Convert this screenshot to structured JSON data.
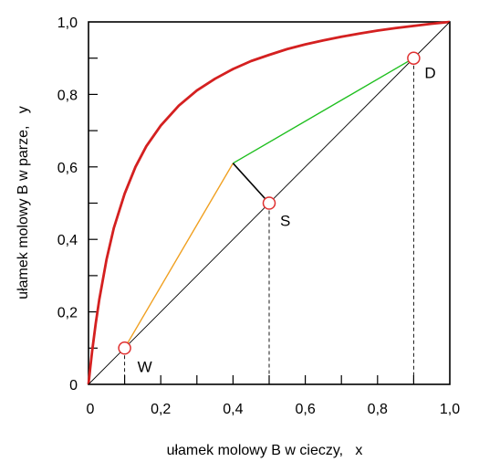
{
  "chart_data": {
    "type": "line",
    "xlabel": "ułamek molowy B w cieczy,   x",
    "ylabel": "ułamek molowy B w parze,   y",
    "xlim": [
      0,
      1
    ],
    "ylim": [
      0,
      1
    ],
    "x_ticks": [
      {
        "value": 0.0,
        "label": "0"
      },
      {
        "value": 0.2,
        "label": "0,2"
      },
      {
        "value": 0.4,
        "label": "0,4"
      },
      {
        "value": 0.6,
        "label": "0,6"
      },
      {
        "value": 0.8,
        "label": "0,8"
      },
      {
        "value": 1.0,
        "label": "1,0"
      }
    ],
    "y_ticks": [
      {
        "value": 0.0,
        "label": "0"
      },
      {
        "value": 0.2,
        "label": "0,2"
      },
      {
        "value": 0.4,
        "label": "0,4"
      },
      {
        "value": 0.6,
        "label": "0,6"
      },
      {
        "value": 0.8,
        "label": "0,8"
      },
      {
        "value": 1.0,
        "label": "1,0"
      }
    ],
    "minor_tick_step": 0.1,
    "grid": false,
    "series": [
      {
        "key": "equilibrium-curve",
        "color": "#d42020",
        "x": [
          0,
          0.005,
          0.01,
          0.02,
          0.03,
          0.05,
          0.07,
          0.1,
          0.13,
          0.16,
          0.2,
          0.25,
          0.3,
          0.35,
          0.4,
          0.45,
          0.5,
          0.55,
          0.6,
          0.65,
          0.7,
          0.75,
          0.8,
          0.85,
          0.9,
          0.95,
          1.0
        ],
        "y": [
          0,
          0.047,
          0.091,
          0.168,
          0.235,
          0.345,
          0.431,
          0.526,
          0.6,
          0.657,
          0.714,
          0.769,
          0.811,
          0.843,
          0.87,
          0.892,
          0.909,
          0.925,
          0.938,
          0.949,
          0.959,
          0.968,
          0.976,
          0.983,
          0.989,
          0.995,
          1.0
        ]
      },
      {
        "key": "diagonal",
        "color": "#000000",
        "x": [
          0,
          1
        ],
        "y": [
          0,
          1
        ]
      },
      {
        "key": "stripping-line",
        "color": "#f0a020",
        "x": [
          0.1,
          0.4
        ],
        "y": [
          0.1,
          0.61
        ]
      },
      {
        "key": "rectifying-line",
        "color": "#1fbf1f",
        "x": [
          0.4,
          0.9
        ],
        "y": [
          0.61,
          0.9
        ]
      },
      {
        "key": "feed-line",
        "color": "#000000",
        "x": [
          0.5,
          0.4
        ],
        "y": [
          0.5,
          0.61
        ]
      }
    ],
    "points": [
      {
        "label": "W",
        "x": 0.1,
        "y": 0.1
      },
      {
        "label": "S",
        "x": 0.5,
        "y": 0.5
      },
      {
        "label": "D",
        "x": 0.9,
        "y": 0.9
      }
    ],
    "marker_color": "#e03030"
  }
}
